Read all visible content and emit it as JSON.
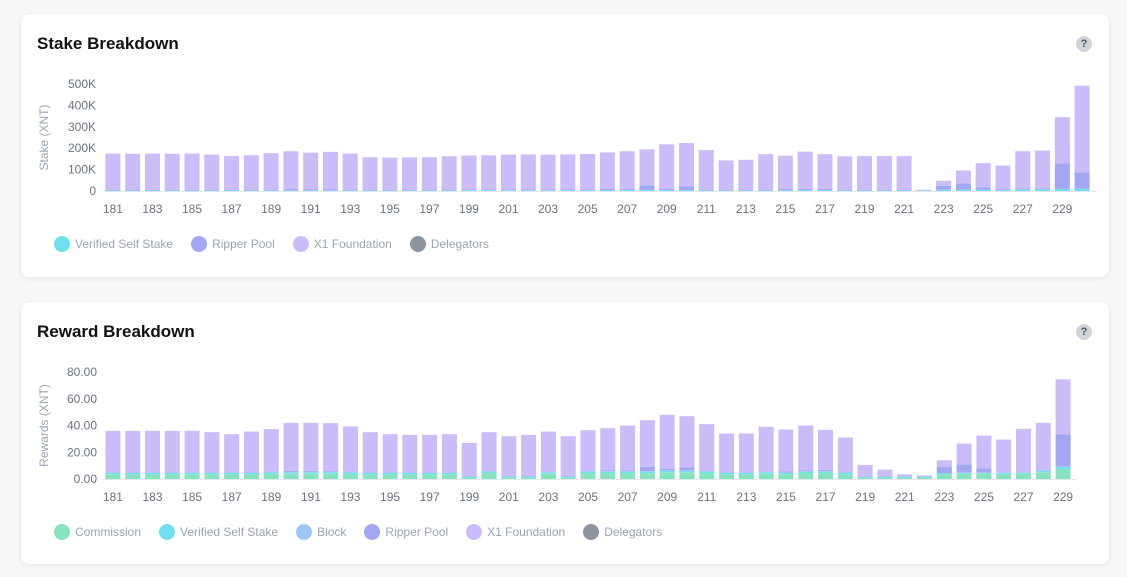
{
  "colors": {
    "commission": "#86e3c0",
    "verified_self_stake": "#6fdff0",
    "block": "#9dc6f7",
    "ripper_pool": "#a3a6f2",
    "x1_foundation": "#cbbcf9",
    "delegators": "#8c949f"
  },
  "help_glyph": "?",
  "chart_data": [
    {
      "type": "bar",
      "stacked": true,
      "title": "Stake Breakdown",
      "ylabel": "Stake (XNT)",
      "ylim": [
        0,
        500000
      ],
      "yticks": [
        0,
        100000,
        200000,
        300000,
        400000,
        500000
      ],
      "ytick_labels": [
        "0",
        "100K",
        "200K",
        "300K",
        "400K",
        "500K"
      ],
      "grid": false,
      "legend_position": "bottom-left",
      "categories": [
        "181",
        "182",
        "183",
        "184",
        "185",
        "186",
        "187",
        "188",
        "189",
        "190",
        "191",
        "192",
        "193",
        "194",
        "195",
        "196",
        "197",
        "198",
        "199",
        "200",
        "201",
        "202",
        "203",
        "204",
        "205",
        "206",
        "207",
        "208",
        "209",
        "210",
        "211",
        "212",
        "213",
        "214",
        "215",
        "216",
        "217",
        "218",
        "219",
        "220",
        "221",
        "222",
        "223",
        "224",
        "225",
        "226",
        "227",
        "228",
        "229",
        "230"
      ],
      "xtick_labels": [
        "181",
        "",
        "183",
        "",
        "185",
        "",
        "187",
        "",
        "189",
        "",
        "191",
        "",
        "193",
        "",
        "195",
        "",
        "197",
        "",
        "199",
        "",
        "201",
        "",
        "203",
        "",
        "205",
        "",
        "207",
        "",
        "209",
        "",
        "211",
        "",
        "213",
        "",
        "215",
        "",
        "217",
        "",
        "219",
        "",
        "221",
        "",
        "223",
        "",
        "225",
        "",
        "227",
        "",
        "229",
        ""
      ],
      "series": [
        {
          "name": "Verified Self Stake",
          "color_key": "verified_self_stake",
          "values": [
            3000,
            3000,
            3000,
            3000,
            3000,
            3000,
            3000,
            3000,
            3000,
            3000,
            3000,
            3000,
            3000,
            3000,
            3000,
            3000,
            3000,
            3000,
            4000,
            4000,
            4000,
            4000,
            4000,
            4000,
            4000,
            5000,
            5000,
            5000,
            5000,
            5000,
            3000,
            3000,
            3000,
            3000,
            4000,
            4000,
            4000,
            3000,
            3000,
            3000,
            3000,
            2000,
            6000,
            6000,
            6000,
            5000,
            8000,
            8000,
            10000,
            12000
          ]
        },
        {
          "name": "Ripper Pool",
          "color_key": "ripper_pool",
          "values": [
            2000,
            2000,
            2000,
            2000,
            2000,
            2000,
            2000,
            2000,
            2000,
            6000,
            5000,
            4000,
            2000,
            2000,
            2000,
            2000,
            2000,
            2000,
            2000,
            2000,
            2000,
            2000,
            2000,
            2000,
            2000,
            6000,
            4000,
            22000,
            6000,
            16000,
            2000,
            2000,
            2000,
            2000,
            5000,
            6000,
            6000,
            2000,
            2000,
            2000,
            2000,
            0,
            18000,
            30000,
            10000,
            2000,
            2000,
            2000,
            120000,
            75000
          ]
        },
        {
          "name": "X1 Foundation",
          "color_key": "x1_foundation",
          "values": [
            170000,
            169000,
            170000,
            169000,
            170000,
            165000,
            158000,
            162000,
            172000,
            177000,
            171000,
            176000,
            170000,
            153000,
            151000,
            152000,
            153000,
            157000,
            160000,
            161000,
            164000,
            165000,
            164000,
            165000,
            167000,
            169000,
            177000,
            168000,
            207000,
            203000,
            187000,
            138000,
            141000,
            167000,
            156000,
            174000,
            162000,
            157000,
            158000,
            158000,
            158000,
            3000,
            24000,
            60000,
            114000,
            112000,
            176000,
            179000,
            215000,
            405000
          ]
        },
        {
          "name": "Delegators",
          "color_key": "delegators",
          "values": [
            0,
            0,
            0,
            0,
            0,
            0,
            0,
            0,
            0,
            0,
            0,
            0,
            0,
            0,
            0,
            0,
            0,
            0,
            0,
            0,
            0,
            0,
            0,
            0,
            0,
            0,
            0,
            0,
            0,
            0,
            0,
            0,
            0,
            0,
            0,
            0,
            0,
            0,
            0,
            0,
            0,
            0,
            0,
            0,
            0,
            0,
            0,
            0,
            0,
            0
          ]
        }
      ]
    },
    {
      "type": "bar",
      "stacked": true,
      "title": "Reward Breakdown",
      "ylabel": "Rewards (XNT)",
      "ylim": [
        0,
        80
      ],
      "yticks": [
        0,
        20,
        40,
        60,
        80
      ],
      "ytick_labels": [
        "0.00",
        "20.00",
        "40.00",
        "60.00",
        "80.00"
      ],
      "grid": false,
      "legend_position": "bottom-left",
      "categories": [
        "181",
        "182",
        "183",
        "184",
        "185",
        "186",
        "187",
        "188",
        "189",
        "190",
        "191",
        "192",
        "193",
        "194",
        "195",
        "196",
        "197",
        "198",
        "199",
        "200",
        "201",
        "202",
        "203",
        "204",
        "205",
        "206",
        "207",
        "208",
        "209",
        "210",
        "211",
        "212",
        "213",
        "214",
        "215",
        "216",
        "217",
        "218",
        "219",
        "220",
        "221",
        "222",
        "223",
        "224",
        "225",
        "226",
        "227",
        "228",
        "229"
      ],
      "xtick_labels": [
        "181",
        "",
        "183",
        "",
        "185",
        "",
        "187",
        "",
        "189",
        "",
        "191",
        "",
        "193",
        "",
        "195",
        "",
        "197",
        "",
        "199",
        "",
        "201",
        "",
        "203",
        "",
        "205",
        "",
        "207",
        "",
        "209",
        "",
        "211",
        "",
        "213",
        "",
        "215",
        "",
        "217",
        "",
        "219",
        "",
        "221",
        "",
        "223",
        "",
        "225",
        "",
        "227",
        "",
        "229"
      ],
      "series": [
        {
          "name": "Commission",
          "color_key": "commission",
          "values": [
            3.5,
            3.5,
            3.5,
            3.5,
            3.5,
            3.5,
            3.5,
            3.5,
            3.8,
            4,
            4,
            4,
            3.8,
            3.5,
            3.5,
            3.5,
            3.5,
            3.5,
            1.2,
            4.5,
            1.2,
            1.2,
            4,
            1.2,
            4.5,
            4.5,
            4.5,
            4.5,
            5,
            5,
            4.5,
            3.5,
            3.5,
            4,
            3.5,
            4.5,
            4.5,
            3.5,
            1,
            1,
            1,
            1,
            3.5,
            4,
            4,
            4,
            4,
            5,
            7.5
          ]
        },
        {
          "name": "Verified Self Stake",
          "color_key": "verified_self_stake",
          "values": [
            1,
            1,
            1,
            1,
            1,
            1,
            1,
            1,
            1,
            1,
            1,
            1,
            1,
            1,
            1,
            1,
            1,
            1,
            0.5,
            1,
            0.5,
            0.5,
            1,
            0.5,
            1,
            1,
            1,
            1,
            1,
            1,
            1,
            1,
            1,
            1,
            1,
            1,
            1,
            1,
            0.5,
            0.5,
            0.5,
            0.5,
            0.5,
            0.5,
            0.5,
            0.5,
            0.5,
            1,
            1.5
          ]
        },
        {
          "name": "Block",
          "color_key": "block",
          "values": [
            0.5,
            0.5,
            0.5,
            0.5,
            0.5,
            0.5,
            0.5,
            0.5,
            0.5,
            0.5,
            0.5,
            0.5,
            0.5,
            0.5,
            0.5,
            0.5,
            0.5,
            0.5,
            0.5,
            0.5,
            0.5,
            0.5,
            0.5,
            0.5,
            0.5,
            0.5,
            0.5,
            0.5,
            0.5,
            0.5,
            0.5,
            0.5,
            0.5,
            0.5,
            0.5,
            0.5,
            0.5,
            0.5,
            0.5,
            0.5,
            0.5,
            0.5,
            0.5,
            0.5,
            0.5,
            0.5,
            0.5,
            0.5,
            0.5
          ]
        },
        {
          "name": "Ripper Pool",
          "color_key": "ripper_pool",
          "values": [
            0,
            0,
            0,
            0,
            0,
            0,
            0,
            0,
            0,
            0.5,
            0.5,
            0.3,
            0,
            0,
            0,
            0,
            0,
            0,
            0,
            0,
            0,
            0,
            0,
            0,
            0,
            0.5,
            0.3,
            3.2,
            1,
            2.2,
            0,
            0,
            0,
            0,
            0.5,
            0.5,
            0.8,
            0,
            0,
            0,
            0,
            0,
            4.5,
            6,
            3,
            0,
            0,
            0,
            24
          ]
        },
        {
          "name": "X1 Foundation",
          "color_key": "x1_foundation",
          "values": [
            31,
            31,
            31,
            31,
            31,
            30,
            28.5,
            30.5,
            32,
            36,
            36,
            36,
            34,
            30,
            28.5,
            28,
            28,
            28.5,
            24.8,
            29,
            29.8,
            30.8,
            30,
            29.8,
            30.5,
            31.5,
            33.7,
            34.8,
            40.5,
            38.3,
            35,
            29,
            29,
            33.5,
            31.5,
            33.5,
            30,
            26,
            8.5,
            5,
            1.5,
            0.5,
            5,
            15.5,
            24.5,
            24.5,
            32.5,
            35.5,
            41
          ]
        },
        {
          "name": "Delegators",
          "color_key": "delegators",
          "values": [
            0,
            0,
            0,
            0,
            0,
            0,
            0,
            0,
            0,
            0,
            0,
            0,
            0,
            0,
            0,
            0,
            0,
            0,
            0,
            0,
            0,
            0,
            0,
            0,
            0,
            0,
            0,
            0,
            0,
            0,
            0,
            0,
            0,
            0,
            0,
            0,
            0,
            0,
            0,
            0,
            0,
            0,
            0,
            0,
            0,
            0,
            0,
            0,
            0
          ]
        }
      ]
    }
  ]
}
